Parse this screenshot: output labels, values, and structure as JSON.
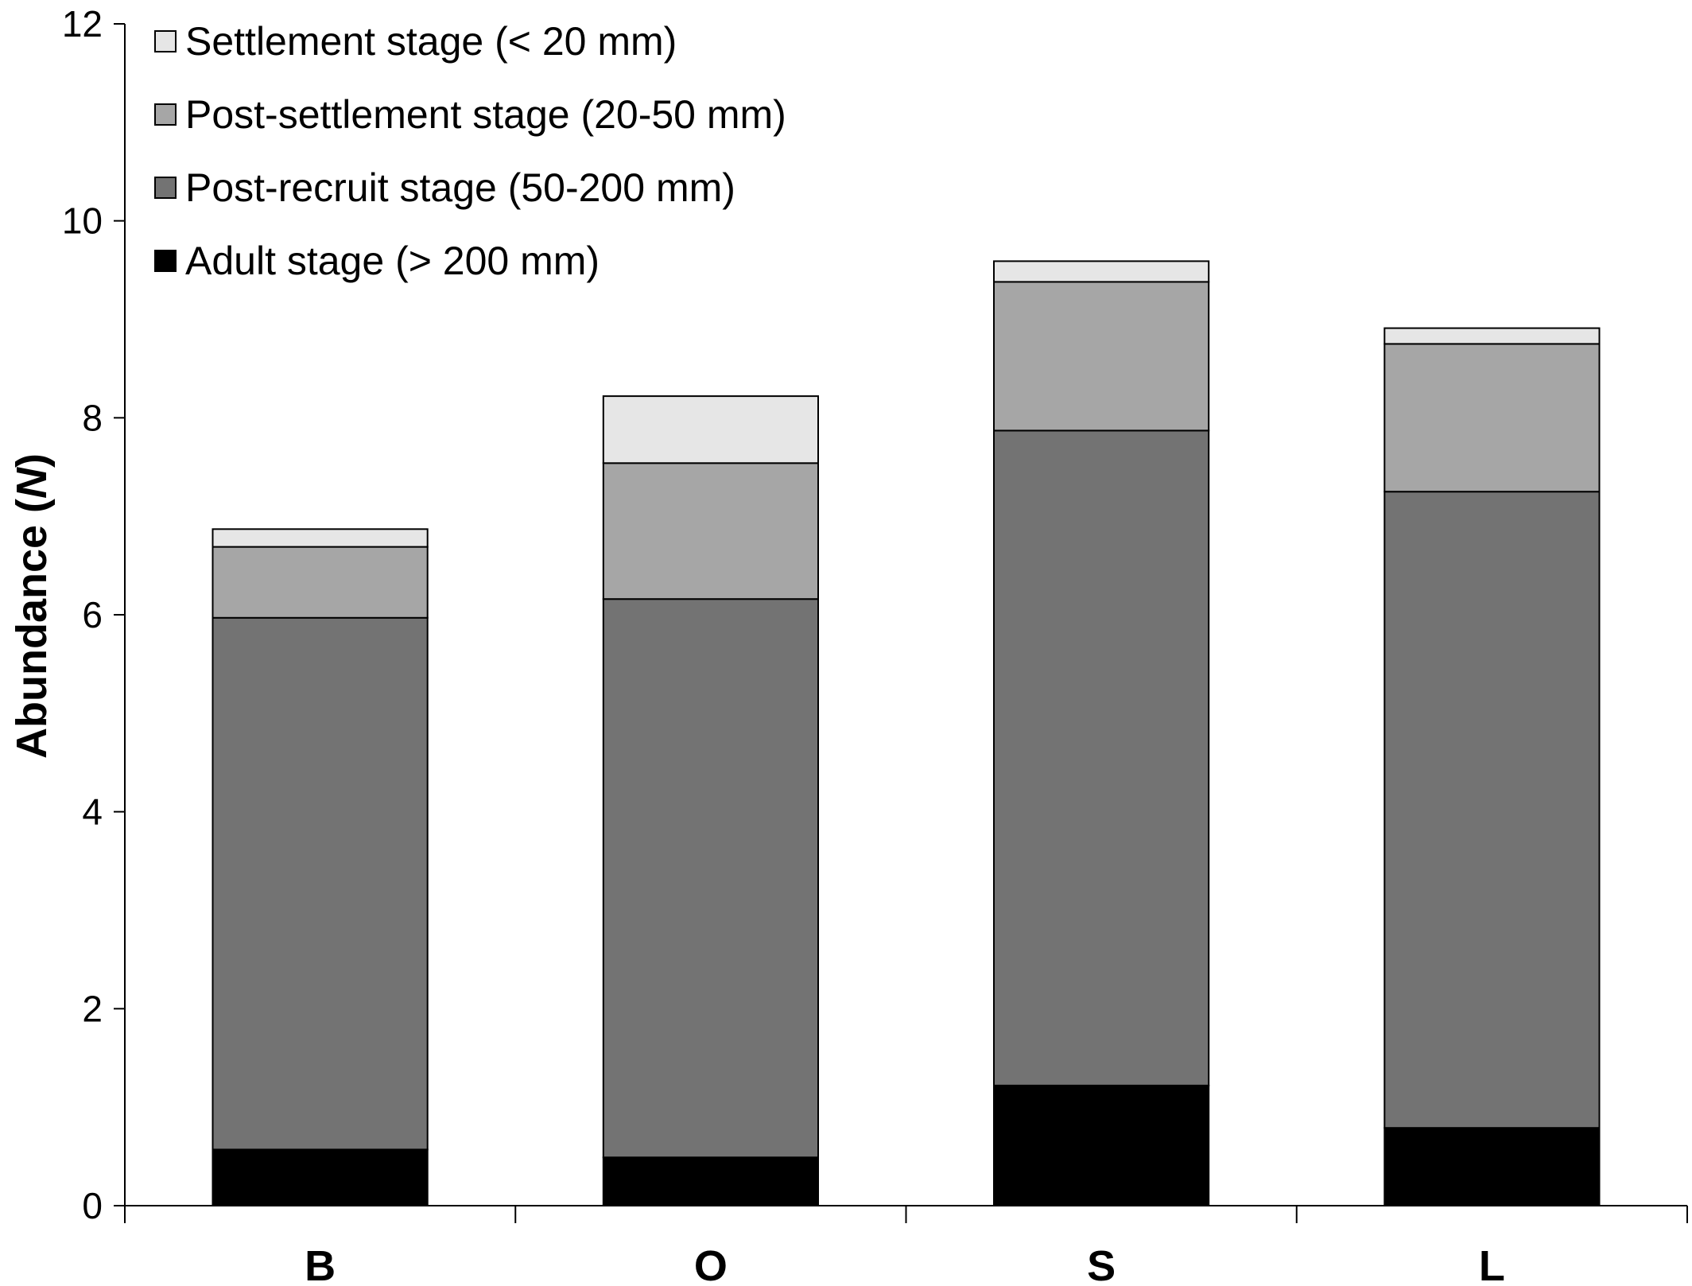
{
  "chart_data": {
    "type": "bar",
    "stacked": true,
    "title": "",
    "xlabel": "",
    "ylabel": "Abundance (",
    "ylabel_italic": "N",
    "ylabel_suffix": ")",
    "ylim": [
      0,
      12
    ],
    "yticks": [
      0,
      2,
      4,
      6,
      8,
      10,
      12
    ],
    "ytick_labels": [
      "0",
      "2",
      "4",
      "6",
      "8",
      "10",
      "12"
    ],
    "categories": [
      "B",
      "O",
      "S",
      "L"
    ],
    "grid": false,
    "legend_position": "top-left",
    "series": [
      {
        "name": "Adult stage (> 200 mm)",
        "color": "#000000",
        "values": [
          0.57,
          0.49,
          1.22,
          0.79
        ]
      },
      {
        "name": "Post-recruit stage (50-200 mm)",
        "color": "#737373",
        "values": [
          5.4,
          5.67,
          6.65,
          6.46
        ]
      },
      {
        "name": "Post-settlement stage (20-50 mm)",
        "color": "#a6a6a6",
        "values": [
          0.72,
          1.38,
          1.51,
          1.5
        ]
      },
      {
        "name": "Settlement stage (< 20 mm)",
        "color": "#e6e6e6",
        "values": [
          0.18,
          0.68,
          0.21,
          0.16
        ]
      }
    ],
    "legend_order": [
      3,
      2,
      1,
      0
    ]
  }
}
